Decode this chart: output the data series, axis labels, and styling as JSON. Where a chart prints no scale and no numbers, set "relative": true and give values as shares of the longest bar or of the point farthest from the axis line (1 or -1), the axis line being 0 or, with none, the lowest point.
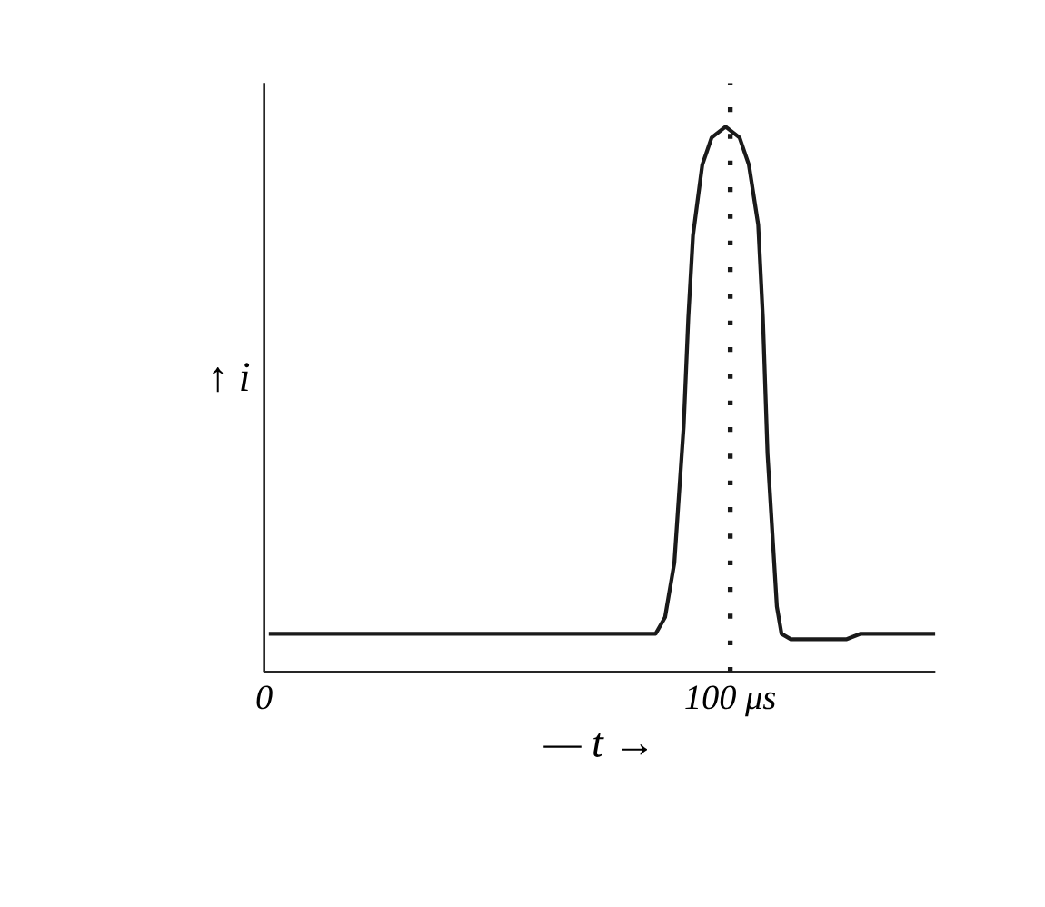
{
  "chart_data": {
    "type": "line",
    "relative": true,
    "xlabel": "— t →",
    "ylabel": "↑ i",
    "x": [
      1,
      40,
      84,
      86,
      88,
      90,
      91,
      92,
      94,
      96,
      99,
      102,
      104,
      106,
      107,
      108,
      110,
      111,
      113,
      125,
      128,
      144
    ],
    "series": [
      {
        "color": "#1a1a1a",
        "values": [
          0.07,
          0.07,
          0.07,
          0.1,
          0.2,
          0.45,
          0.65,
          0.8,
          0.93,
          0.98,
          1.0,
          0.98,
          0.93,
          0.82,
          0.65,
          0.4,
          0.12,
          0.07,
          0.06,
          0.06,
          0.07,
          0.07
        ]
      }
    ],
    "xlim": [
      0,
      144
    ],
    "xticks": [
      0,
      {
        "value": 100,
        "label": "100 μs"
      }
    ],
    "ref_lines": [
      {
        "axis": "x",
        "value": 100,
        "line_style": "dotted",
        "color": "#1a1a1a"
      }
    ],
    "grid": false,
    "marker": "none",
    "line_style": "solid"
  }
}
